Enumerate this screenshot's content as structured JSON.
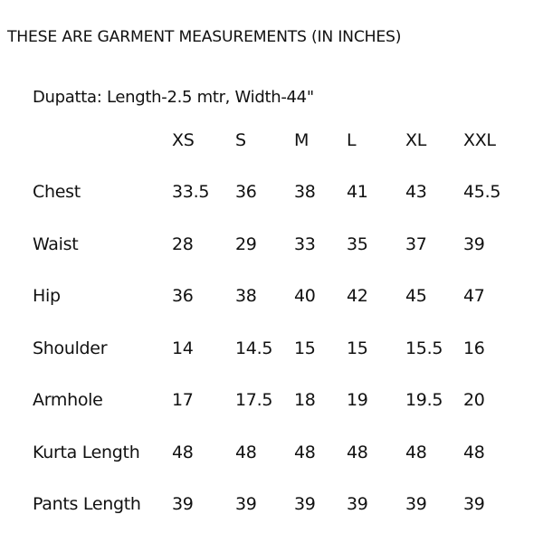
{
  "title": "THESE ARE GARMENT MEASUREMENTS (IN INCHES)",
  "dupatta": "Dupatta: Length-2.5 mtr, Width-44\"",
  "sizes": [
    "XS",
    "S",
    "M",
    "L",
    "XL",
    "XXL"
  ],
  "rows": [
    {
      "label": "Chest",
      "values": [
        "33.5",
        "36",
        "38",
        "41",
        "43",
        "45.5"
      ]
    },
    {
      "label": "Waist",
      "values": [
        "28",
        "29",
        "33",
        "35",
        "37",
        "39"
      ]
    },
    {
      "label": "Hip",
      "values": [
        "36",
        "38",
        "40",
        "42",
        "45",
        "47"
      ]
    },
    {
      "label": "Shoulder",
      "values": [
        "14",
        "14.5",
        "15",
        "15",
        "15.5",
        "16"
      ]
    },
    {
      "label": "Armhole",
      "values": [
        "17",
        "17.5",
        "18",
        "19",
        "19.5",
        "20"
      ]
    },
    {
      "label": "Kurta Length",
      "values": [
        "48",
        "48",
        "48",
        "48",
        "48",
        "48"
      ]
    },
    {
      "label": "Pants Length",
      "values": [
        "39",
        "39",
        "39",
        "39",
        "39",
        "39"
      ]
    }
  ]
}
